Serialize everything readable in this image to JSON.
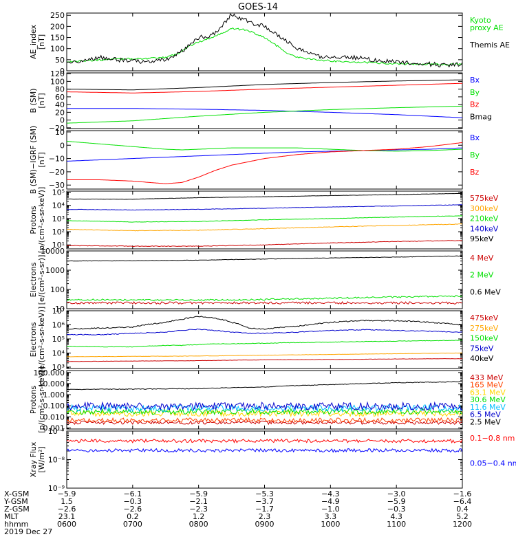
{
  "title": "GOES-14",
  "chart_data": [
    {
      "type": "line",
      "id": "ae",
      "ylabel": "AE_index [nT]",
      "scale": "linear",
      "ylim": [
        0,
        260
      ],
      "ticks": [
        0,
        50,
        100,
        150,
        200,
        250
      ],
      "tick_labels": [
        "0",
        "50",
        "100",
        "150",
        "200",
        "250"
      ],
      "x": [
        6.0,
        6.25,
        6.5,
        6.75,
        7.0,
        7.25,
        7.5,
        7.7,
        7.85,
        8.0,
        8.2,
        8.35,
        8.5,
        8.7,
        8.8,
        9.0,
        9.2,
        9.4,
        9.6,
        9.8,
        10.0,
        10.25,
        10.5,
        10.75,
        11.0,
        11.25,
        11.5,
        11.75,
        12.0
      ],
      "series": [
        {
          "name": "Kyoto\nproxy AE",
          "color": "#00e000",
          "values": [
            40,
            45,
            48,
            52,
            55,
            55,
            60,
            80,
            110,
            130,
            150,
            170,
            190,
            185,
            175,
            150,
            110,
            70,
            55,
            50,
            45,
            40,
            38,
            35,
            32,
            30,
            30,
            28,
            30
          ]
        },
        {
          "name": "Themis AE",
          "color": "#000000",
          "values": [
            30,
            50,
            60,
            50,
            45,
            40,
            50,
            80,
            110,
            150,
            160,
            200,
            255,
            230,
            215,
            200,
            160,
            120,
            85,
            65,
            60,
            65,
            55,
            45,
            40,
            35,
            30,
            25,
            30
          ]
        }
      ],
      "noise": [
        4,
        10
      ]
    },
    {
      "type": "line",
      "id": "b_sm",
      "ylabel": "B (SM) [nT]",
      "scale": "linear",
      "ylim": [
        -22,
        122
      ],
      "ticks": [
        -20,
        0,
        20,
        40,
        60,
        80,
        100,
        120
      ],
      "tick_labels": [
        "−20",
        "0",
        "20",
        "40",
        "60",
        "80",
        "100",
        "120"
      ],
      "x": [
        6.0,
        7.0,
        8.0,
        9.0,
        10.0,
        11.0,
        12.0
      ],
      "series": [
        {
          "name": "Bx",
          "color": "#0000ff",
          "values": [
            30,
            30,
            28,
            25,
            20,
            14,
            6
          ]
        },
        {
          "name": "By",
          "color": "#00e000",
          "values": [
            -8,
            -2,
            10,
            20,
            27,
            32,
            36
          ]
        },
        {
          "name": "Bz",
          "color": "#ff0000",
          "values": [
            73,
            70,
            74,
            80,
            85,
            90,
            95
          ]
        },
        {
          "name": "Bmag",
          "color": "#000000",
          "values": [
            80,
            78,
            84,
            92,
            97,
            101,
            104
          ]
        }
      ]
    },
    {
      "type": "line",
      "id": "b_igrf",
      "ylabel": "B (SM)−IGRF (SM) [nT]",
      "scale": "linear",
      "ylim": [
        -33,
        11
      ],
      "ticks": [
        -30,
        -20,
        -10,
        0,
        10
      ],
      "tick_labels": [
        "−30",
        "−20",
        "−10",
        "0",
        "10"
      ],
      "x": [
        6.0,
        6.5,
        7.0,
        7.5,
        7.75,
        8.0,
        8.25,
        8.5,
        9.0,
        9.5,
        10.0,
        10.5,
        11.0,
        11.5,
        12.0
      ],
      "series": [
        {
          "name": "Bx",
          "color": "#0000ff",
          "values": [
            -12,
            -11,
            -10,
            -9,
            -8.5,
            -8,
            -7.5,
            -7,
            -6,
            -5,
            -4.5,
            -4,
            -3.5,
            -3,
            -2
          ]
        },
        {
          "name": "By",
          "color": "#00e000",
          "values": [
            3,
            1,
            -1,
            -3,
            -3.5,
            -3,
            -2.5,
            -2,
            -2,
            -2,
            -3,
            -4,
            -4.5,
            -4,
            -3
          ]
        },
        {
          "name": "Bz",
          "color": "#ff0000",
          "values": [
            -26,
            -26,
            -27,
            -29,
            -28,
            -24,
            -19,
            -15,
            -10,
            -7,
            -5,
            -4,
            -3,
            -1,
            2
          ]
        }
      ]
    },
    {
      "type": "line",
      "id": "protons_low",
      "ylabel": "Protons [p/(cm²-s-sr-keV)]",
      "scale": "log",
      "ylim": [
        5,
        120000
      ],
      "ticks": [
        10,
        100,
        1000,
        10000,
        100000
      ],
      "tick_labels": [
        "10¹",
        "10²",
        "10³",
        "10⁴",
        "10⁵"
      ],
      "x": [
        6.0,
        7.0,
        8.0,
        9.0,
        10.0,
        11.0,
        12.0
      ],
      "series": [
        {
          "name": "575keV",
          "color": "#cc0000",
          "values": [
            9,
            8,
            8,
            10,
            14,
            18,
            22
          ]
        },
        {
          "name": "300keV",
          "color": "#ffa500",
          "values": [
            150,
            120,
            130,
            170,
            230,
            300,
            380
          ]
        },
        {
          "name": "210keV",
          "color": "#00e000",
          "values": [
            700,
            550,
            600,
            800,
            1000,
            1300,
            1600
          ]
        },
        {
          "name": "140keV",
          "color": "#0000cc",
          "values": [
            5000,
            4500,
            5000,
            6000,
            7500,
            9000,
            11000
          ]
        },
        {
          "name": "95keV",
          "color": "#000000",
          "values": [
            30000,
            29000,
            38000,
            45000,
            55000,
            65000,
            80000
          ]
        }
      ],
      "noise": [
        0.02,
        0.02,
        0.015,
        0.015,
        0.01
      ]
    },
    {
      "type": "line",
      "id": "electrons_high",
      "ylabel": "Electrons [e/(cm²-s-sr)]",
      "scale": "log",
      "ylim": [
        10,
        10000
      ],
      "ticks": [
        10,
        100,
        1000,
        10000
      ],
      "tick_labels": [
        "10",
        "100",
        "1000",
        "10000"
      ],
      "x": [
        6.0,
        7.0,
        8.0,
        9.0,
        10.0,
        11.0,
        12.0
      ],
      "series": [
        {
          "name": "4 MeV",
          "color": "#cc0000",
          "values": [
            20,
            20,
            20,
            20,
            20,
            20,
            20
          ]
        },
        {
          "name": "2 MeV",
          "color": "#00e000",
          "values": [
            30,
            28,
            28,
            30,
            35,
            40,
            45
          ]
        },
        {
          "name": "0.6 MeV",
          "color": "#000000",
          "values": [
            3000,
            3100,
            3300,
            3800,
            4300,
            4800,
            5500
          ]
        }
      ],
      "noise": [
        0.06,
        0.04,
        0.01
      ]
    },
    {
      "type": "line",
      "id": "electrons_low",
      "ylabel": "Electrons [e/(cm²-s-sr-keV)]",
      "scale": "log",
      "ylim": [
        800,
        10000000
      ],
      "ticks": [
        1000,
        10000,
        100000,
        1000000,
        10000000
      ],
      "tick_labels": [
        "10³",
        "10⁴",
        "10⁵",
        "10⁶",
        "10⁷"
      ],
      "x": [
        6.0,
        6.5,
        7.0,
        7.5,
        7.75,
        8.0,
        8.25,
        8.5,
        8.75,
        9.0,
        9.5,
        10.0,
        10.5,
        11.0,
        11.5,
        12.0
      ],
      "series": [
        {
          "name": "475keV",
          "color": "#cc0000",
          "values": [
            2500,
            2600,
            2700,
            2800,
            2800,
            2900,
            3000,
            3100,
            3200,
            3300,
            3400,
            3500,
            3600,
            3800,
            3900,
            4000
          ]
        },
        {
          "name": "275keV",
          "color": "#ffa500",
          "values": [
            5500,
            5600,
            5800,
            6000,
            6000,
            6200,
            6300,
            6500,
            6800,
            7000,
            7500,
            8000,
            8500,
            9000,
            9500,
            10000
          ]
        },
        {
          "name": "150keV",
          "color": "#00e000",
          "values": [
            30000,
            28000,
            28000,
            35000,
            35000,
            40000,
            45000,
            45000,
            48000,
            50000,
            55000,
            60000,
            65000,
            70000,
            75000,
            80000
          ]
        },
        {
          "name": "75keV",
          "color": "#0000cc",
          "values": [
            200000,
            200000,
            250000,
            300000,
            400000,
            500000,
            400000,
            300000,
            250000,
            250000,
            300000,
            400000,
            450000,
            400000,
            350000,
            300000
          ]
        },
        {
          "name": "40keV",
          "color": "#000000",
          "values": [
            500000,
            600000,
            700000,
            1500000,
            2500000,
            4000000,
            3000000,
            1500000,
            600000,
            500000,
            800000,
            1500000,
            2000000,
            2000000,
            1500000,
            1000000
          ]
        }
      ],
      "noise": [
        0.01,
        0.01,
        0.02,
        0.03,
        0.04
      ]
    },
    {
      "type": "line",
      "id": "protons_high",
      "ylabel": "Protons [p/(cm²-s-sr-keV)]",
      "scale": "log",
      "ylim": [
        0.0008,
        150
      ],
      "ticks": [
        0.001,
        0.01,
        0.1,
        1,
        10,
        100
      ],
      "tick_labels": [
        "0.001",
        "0.010",
        "0.100",
        "1.000",
        "10.000",
        "100.000"
      ],
      "x": [
        6.0,
        7.0,
        8.0,
        9.0,
        10.0,
        11.0,
        12.0
      ],
      "series": [
        {
          "name": "433 MeV",
          "color": "#cc0000",
          "values": [
            0.003,
            0.003,
            0.003,
            0.003,
            0.003,
            0.003,
            0.003
          ]
        },
        {
          "name": "165 MeV",
          "color": "#ff4500",
          "values": [
            0.005,
            0.005,
            0.005,
            0.005,
            0.005,
            0.005,
            0.005
          ]
        },
        {
          "name": "63.1 MeV",
          "color": "#ffd700",
          "values": [
            0.02,
            0.02,
            0.02,
            0.02,
            0.02,
            0.02,
            0.02
          ]
        },
        {
          "name": "30.6 MeV",
          "color": "#00e000",
          "values": [
            0.03,
            0.03,
            0.03,
            0.03,
            0.03,
            0.03,
            0.03
          ]
        },
        {
          "name": "11.6 MeV",
          "color": "#00bfff",
          "values": [
            0.06,
            0.06,
            0.06,
            0.06,
            0.06,
            0.06,
            0.06
          ]
        },
        {
          "name": "6.5 MeV",
          "color": "#0000cc",
          "values": [
            0.09,
            0.09,
            0.09,
            0.09,
            0.09,
            0.09,
            0.09
          ]
        },
        {
          "name": "2.5 MeV",
          "color": "#000000",
          "values": [
            3,
            3.2,
            3.5,
            5,
            8,
            12,
            15
          ]
        }
      ],
      "noise": [
        0.15,
        0.2,
        0.25,
        0.25,
        0.3,
        0.35,
        0.03
      ]
    },
    {
      "type": "line",
      "id": "xray",
      "ylabel": "Xray Flux [W/m²]",
      "scale": "log",
      "ylim": [
        1e-09,
        1e-07
      ],
      "ticks": [
        1e-09,
        1e-08,
        1e-07
      ],
      "tick_labels": [
        "10⁻⁹",
        "10⁻⁸",
        "10⁻⁷"
      ],
      "x": [
        6.0,
        7.0,
        8.0,
        9.0,
        10.0,
        11.0,
        12.0
      ],
      "series": [
        {
          "name": "0.1−0.8 nm",
          "color": "#ff0000",
          "values": 4.5e-08
        },
        {
          "name": "0.05−0.4 nm",
          "color": "#0000ff",
          "values": 2.1e-08
        }
      ],
      "noise": [
        0.06,
        0.06
      ]
    }
  ],
  "xaxis": {
    "ticks": [
      6,
      7,
      8,
      9,
      10,
      11,
      12
    ],
    "rows": [
      {
        "label": "X-GSM",
        "values": [
          "−5.9",
          "−6.1",
          "−5.9",
          "−5.3",
          "−4.3",
          "−3.0",
          "−1.6"
        ]
      },
      {
        "label": "Y-GSM",
        "values": [
          "1.5",
          "−0.3",
          "−2.1",
          "−3.7",
          "−4.9",
          "−5.9",
          "−6.4"
        ]
      },
      {
        "label": "Z-GSM",
        "values": [
          "−2.6",
          "−2.6",
          "−2.3",
          "−1.7",
          "−1.0",
          "−0.3",
          "0.4"
        ]
      },
      {
        "label": "MLT",
        "values": [
          "23.1",
          "0.2",
          "1.2",
          "2.3",
          "3.3",
          "4.3",
          "5.2"
        ]
      },
      {
        "label": "hhmm",
        "values": [
          "0600",
          "0700",
          "0800",
          "0900",
          "1000",
          "1100",
          "1200"
        ]
      }
    ],
    "date": "2019 Dec 27"
  }
}
